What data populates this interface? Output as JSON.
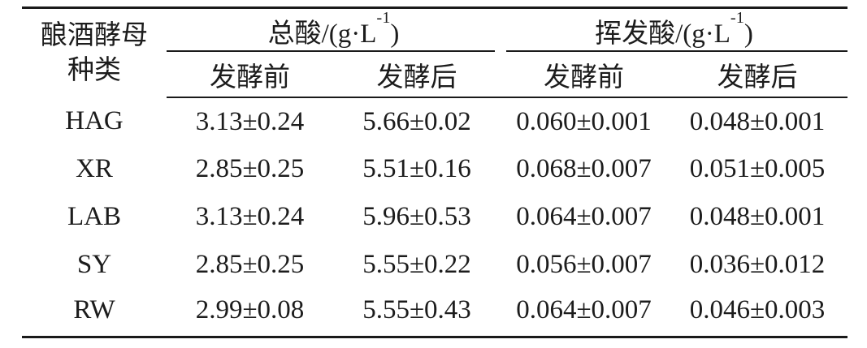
{
  "table": {
    "stub_header": {
      "line1": "酿酒酵母",
      "line2": "种类"
    },
    "groups": [
      {
        "pre": "总酸/(g·L",
        "sup": "-1",
        "post": ")"
      },
      {
        "pre": "挥发酸/(g·L",
        "sup": "-1",
        "post": ")"
      }
    ],
    "sub_headers": [
      "发酵前",
      "发酵后",
      "发酵前",
      "发酵后"
    ],
    "rows": [
      {
        "label": "HAG",
        "values": [
          "3.13±0.24",
          "5.66±0.02",
          "0.060±0.001",
          "0.048±0.001"
        ]
      },
      {
        "label": "XR",
        "values": [
          "2.85±0.25",
          "5.51±0.16",
          "0.068±0.007",
          "0.051±0.005"
        ]
      },
      {
        "label": "LAB",
        "values": [
          "3.13±0.24",
          "5.96±0.53",
          "0.064±0.007",
          "0.048±0.001"
        ]
      },
      {
        "label": "SY",
        "values": [
          "2.85±0.25",
          "5.55±0.22",
          "0.056±0.007",
          "0.036±0.012"
        ]
      },
      {
        "label": "RW",
        "values": [
          "2.99±0.08",
          "5.55±0.43",
          "0.064±0.007",
          "0.046±0.003"
        ]
      }
    ],
    "colors": {
      "text": "#1c1c1c",
      "rule": "#1a1a1a",
      "background": "#ffffff"
    }
  }
}
